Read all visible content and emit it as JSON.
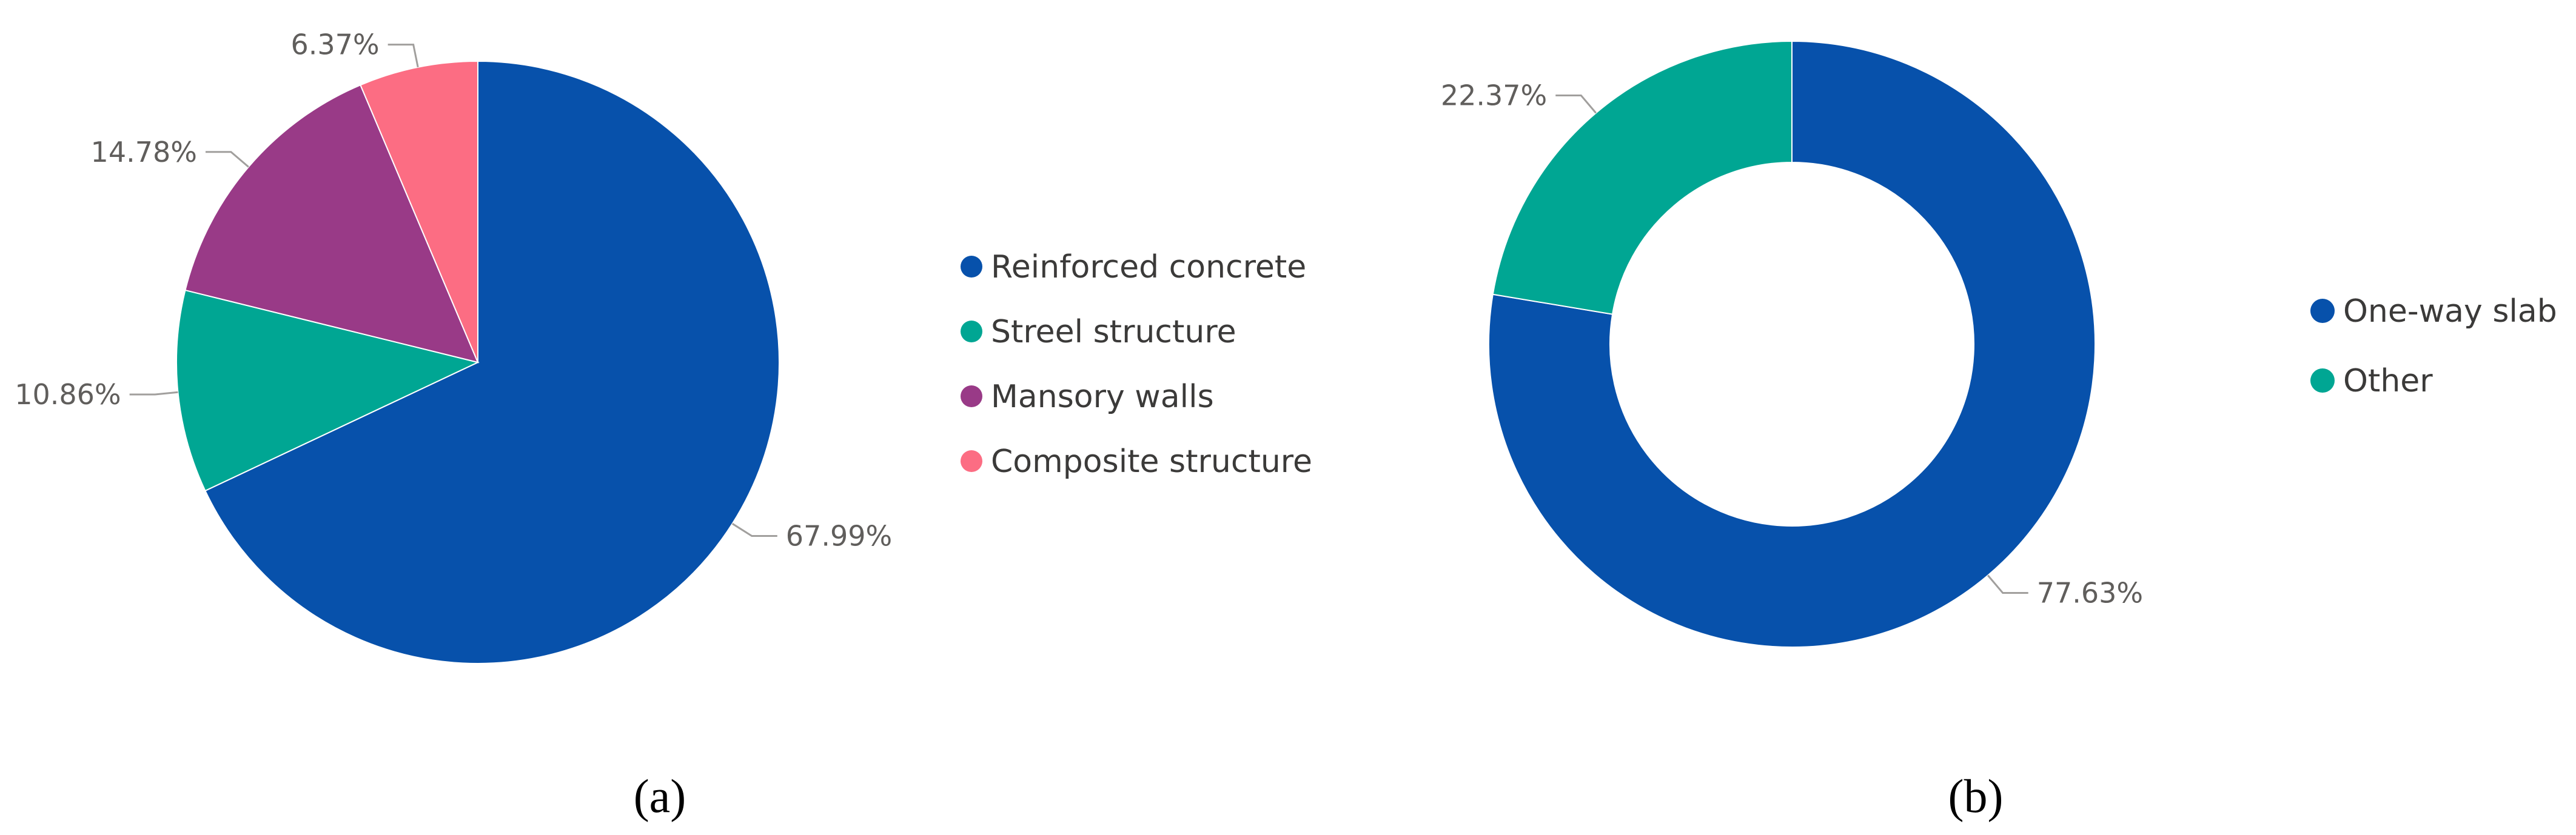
{
  "chart_data": [
    {
      "type": "pie",
      "caption": "(a)",
      "slices": [
        {
          "name": "Reinforced concrete",
          "value": 67.99,
          "label": "67.99%"
        },
        {
          "name": "Streel structure",
          "value": 10.86,
          "label": "10.86%"
        },
        {
          "name": "Mansory walls",
          "value": 14.78,
          "label": "14.78%"
        },
        {
          "name": "Composite structure",
          "value": 6.37,
          "label": "6.37%"
        }
      ],
      "legend_position": "right"
    },
    {
      "type": "donut",
      "caption": "(b)",
      "slices": [
        {
          "name": "One-way slab",
          "value": 77.63,
          "label": "77.63%"
        },
        {
          "name": "Other",
          "value": 22.37,
          "label": "22.37%"
        }
      ],
      "legend_position": "right"
    }
  ],
  "colors": {
    "Reinforced concrete": "#0751ab",
    "Streel structure": "#00a693",
    "Mansory walls": "#993a87",
    "Composite structure": "#fc6d83",
    "One-way slab": "#0751ab",
    "Other": "#00a693"
  }
}
